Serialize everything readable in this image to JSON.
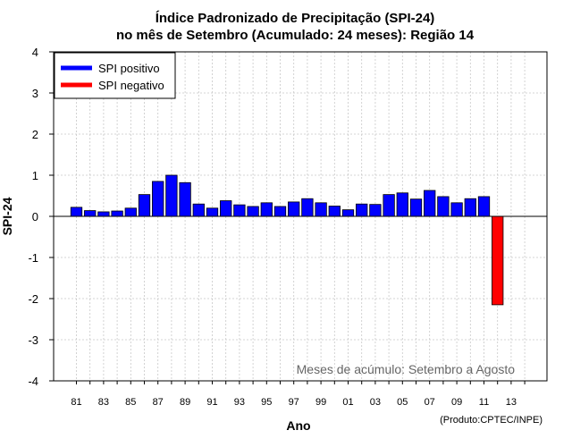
{
  "chart_data": {
    "type": "bar",
    "title": "Índice Padronizado de Precipitação (SPI-24)",
    "subtitle": "no mês de Setembro (Acumulado: 24 meses): Região 14",
    "xlabel": "Ano",
    "ylabel": "SPI-24",
    "ylim": [
      -4,
      4
    ],
    "yticks": [
      "4",
      "3",
      "2",
      "1",
      "0",
      "-1",
      "-2",
      "-3",
      "-4"
    ],
    "xtick_labels": [
      "81",
      "83",
      "85",
      "87",
      "89",
      "91",
      "93",
      "95",
      "97",
      "99",
      "01",
      "03",
      "05",
      "07",
      "09",
      "11",
      "13"
    ],
    "categories": [
      1981,
      1982,
      1983,
      1984,
      1985,
      1986,
      1987,
      1988,
      1989,
      1990,
      1991,
      1992,
      1993,
      1994,
      1995,
      1996,
      1997,
      1998,
      1999,
      2000,
      2001,
      2002,
      2003,
      2004,
      2005,
      2006,
      2007,
      2008,
      2009,
      2010,
      2011,
      2012
    ],
    "values": [
      0.22,
      0.14,
      0.11,
      0.13,
      0.2,
      0.53,
      0.85,
      1.0,
      0.82,
      0.3,
      0.2,
      0.38,
      0.28,
      0.24,
      0.33,
      0.24,
      0.35,
      0.43,
      0.33,
      0.25,
      0.16,
      0.3,
      0.29,
      0.53,
      0.57,
      0.42,
      0.63,
      0.48,
      0.33,
      0.43,
      0.48,
      -2.15
    ],
    "legend": {
      "position": "top-left",
      "items": [
        {
          "label": "SPI positivo",
          "color": "#0000ff"
        },
        {
          "label": "SPI negativo",
          "color": "#ff0000"
        }
      ]
    },
    "grid": true,
    "colors": {
      "positive": "#0000ff",
      "negative": "#ff0000"
    },
    "annotation": "Meses de acúmulo: Setembro a Agosto",
    "credit": "(Produto:CPTEC/INPE)"
  }
}
